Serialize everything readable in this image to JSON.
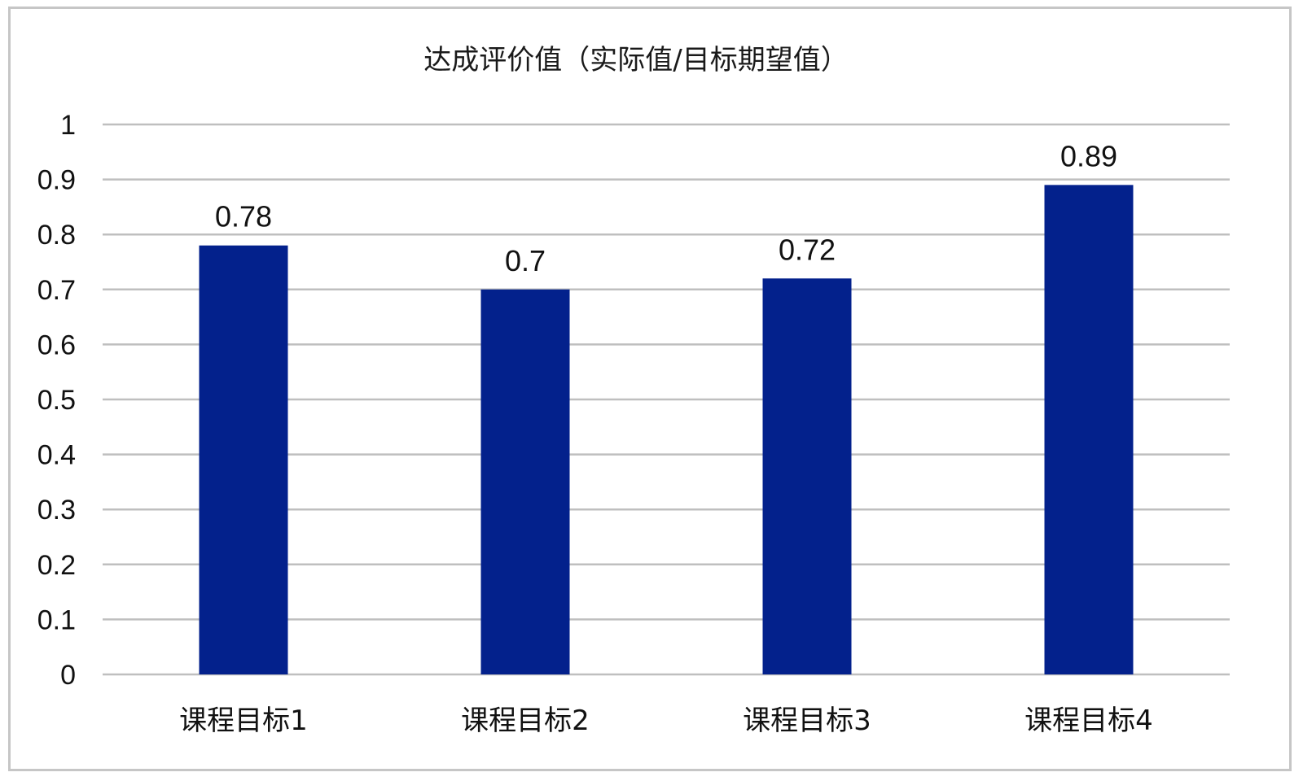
{
  "chart_data": {
    "type": "bar",
    "title": "达成评价值（实际值/目标期望值）",
    "categories": [
      "课程目标1",
      "课程目标2",
      "课程目标3",
      "课程目标4"
    ],
    "values": [
      0.78,
      0.7,
      0.72,
      0.89
    ],
    "data_labels": [
      "0.78",
      "0.7",
      "0.72",
      "0.89"
    ],
    "ylim": [
      0,
      1
    ],
    "y_ticks": [
      0,
      0.1,
      0.2,
      0.3,
      0.4,
      0.5,
      0.6,
      0.7,
      0.8,
      0.9,
      1
    ],
    "y_tick_labels": [
      "0",
      "0.1",
      "0.2",
      "0.3",
      "0.4",
      "0.5",
      "0.6",
      "0.7",
      "0.8",
      "0.9",
      "1"
    ],
    "xlabel": "",
    "ylabel": "",
    "grid": true,
    "legend": "none",
    "colors": {
      "bar": "#03218C",
      "grid": "#BFBFBF",
      "border": "#C6C6C6",
      "text": "#111111"
    }
  }
}
